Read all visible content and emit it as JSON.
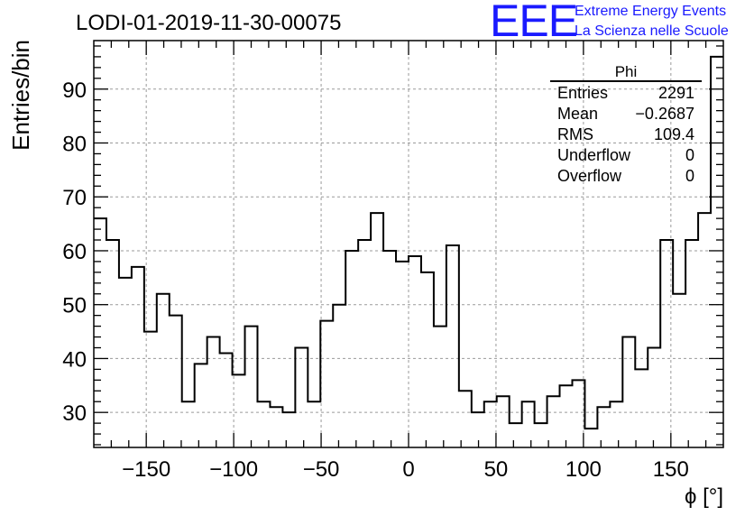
{
  "chart_data": {
    "type": "histogram",
    "title": "LODI-01-2019-11-30-00075",
    "xlabel": "ϕ [°]",
    "ylabel": "Entries/bin",
    "xlim": [
      -180,
      180
    ],
    "ylim": [
      23.5,
      99
    ],
    "bin_width": 7.2,
    "xticks": [
      -150,
      -100,
      -50,
      0,
      50,
      100,
      150
    ],
    "xtick_labels": [
      "−150",
      "−100",
      "−50",
      "0",
      "50",
      "100",
      "150"
    ],
    "yticks": [
      30,
      40,
      50,
      60,
      70,
      80,
      90
    ],
    "ytick_labels": [
      "30",
      "40",
      "50",
      "60",
      "70",
      "80",
      "90"
    ],
    "grid": true,
    "values": [
      66,
      62,
      55,
      57,
      45,
      52,
      48,
      32,
      39,
      44,
      41,
      37,
      46,
      32,
      31,
      30,
      42,
      32,
      47,
      50,
      60,
      62,
      67,
      60,
      58,
      59,
      56,
      46,
      61,
      34,
      30,
      32,
      33,
      28,
      32,
      28,
      33,
      35,
      36,
      27,
      31,
      32,
      44,
      38,
      42,
      62,
      52,
      62,
      67,
      96
    ],
    "stats": {
      "name": "Phi",
      "rows": [
        {
          "label": "Entries",
          "value": "2291"
        },
        {
          "label": "Mean",
          "value": "−0.2687"
        },
        {
          "label": "RMS",
          "value": "109.4"
        },
        {
          "label": "Underflow",
          "value": "0"
        },
        {
          "label": "Overflow",
          "value": "0"
        }
      ]
    }
  },
  "logo": {
    "mark": "EEE",
    "line1": "Extreme Energy Events",
    "line2": "La Scienza nelle Scuole"
  },
  "colors": {
    "line": "#000000",
    "grid": "#9a9a9a",
    "logo": "#1a1aff"
  }
}
